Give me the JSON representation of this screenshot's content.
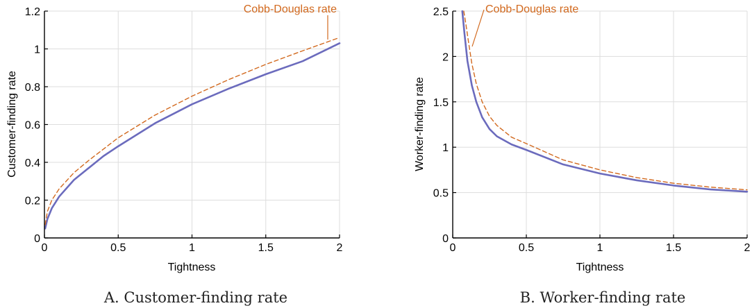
{
  "colors": {
    "solid": "#6b6bbd",
    "dashed": "#d2691e",
    "grid": "#dddddd",
    "axis": "#000000"
  },
  "chart_data": [
    {
      "type": "line",
      "caption": "A. Customer-finding rate",
      "xlabel": "Tightness",
      "ylabel": "Customer-finding rate",
      "xlim": [
        0,
        2
      ],
      "ylim": [
        0,
        1.2
      ],
      "xticks": [
        0,
        0.5,
        1,
        1.5,
        2
      ],
      "xtick_labels": [
        "0",
        "0.5",
        "1",
        "1.5",
        "2"
      ],
      "yticks": [
        0,
        0.2,
        0.4,
        0.6,
        0.8,
        1,
        1.2
      ],
      "ytick_labels": [
        "0",
        "0.2",
        "0.4",
        "0.6",
        "0.8",
        "1",
        "1.2"
      ],
      "grid": true,
      "annotation": "Cobb-Douglas rate",
      "series": [
        {
          "style": "solid",
          "x": [
            0.005,
            0.02,
            0.05,
            0.1,
            0.2,
            0.3,
            0.4,
            0.5,
            0.75,
            1,
            1.25,
            1.5,
            1.75,
            2
          ],
          "y": [
            0.05,
            0.1,
            0.157,
            0.219,
            0.307,
            0.37,
            0.433,
            0.485,
            0.607,
            0.707,
            0.79,
            0.866,
            0.935,
            1.03
          ]
        },
        {
          "style": "dashed",
          "x": [
            0.005,
            0.02,
            0.05,
            0.1,
            0.2,
            0.3,
            0.4,
            0.5,
            0.75,
            1,
            1.25,
            1.5,
            1.75,
            2
          ],
          "y": [
            0.07,
            0.14,
            0.2,
            0.26,
            0.345,
            0.41,
            0.47,
            0.53,
            0.65,
            0.75,
            0.838,
            0.918,
            0.99,
            1.06
          ]
        }
      ]
    },
    {
      "type": "line",
      "caption": "B. Worker-finding rate",
      "xlabel": "Tightness",
      "ylabel": "Worker-finding rate",
      "xlim": [
        0,
        2
      ],
      "ylim": [
        0,
        2.5
      ],
      "xticks": [
        0,
        0.5,
        1,
        1.5,
        2
      ],
      "xtick_labels": [
        "0",
        "0.5",
        "1",
        "1.5",
        "2"
      ],
      "yticks": [
        0,
        0.5,
        1,
        1.5,
        2,
        2.5
      ],
      "ytick_labels": [
        "0",
        "0.5",
        "1",
        "1.5",
        "2",
        "2.5"
      ],
      "grid": true,
      "annotation": "Cobb-Douglas rate",
      "series": [
        {
          "style": "solid",
          "x": [
            0.065,
            0.08,
            0.1,
            0.13,
            0.16,
            0.2,
            0.25,
            0.3,
            0.4,
            0.5,
            0.75,
            1,
            1.25,
            1.5,
            1.75,
            2
          ],
          "y": [
            2.5,
            2.25,
            1.95,
            1.68,
            1.5,
            1.33,
            1.2,
            1.12,
            1.03,
            0.97,
            0.81,
            0.71,
            0.635,
            0.578,
            0.535,
            0.51
          ]
        },
        {
          "style": "dashed",
          "x": [
            0.075,
            0.09,
            0.11,
            0.13,
            0.16,
            0.2,
            0.25,
            0.3,
            0.4,
            0.5,
            0.75,
            1,
            1.25,
            1.5,
            1.75,
            2
          ],
          "y": [
            2.5,
            2.35,
            2.13,
            1.92,
            1.7,
            1.5,
            1.34,
            1.24,
            1.11,
            1.04,
            0.86,
            0.75,
            0.665,
            0.603,
            0.56,
            0.53
          ]
        }
      ]
    }
  ]
}
